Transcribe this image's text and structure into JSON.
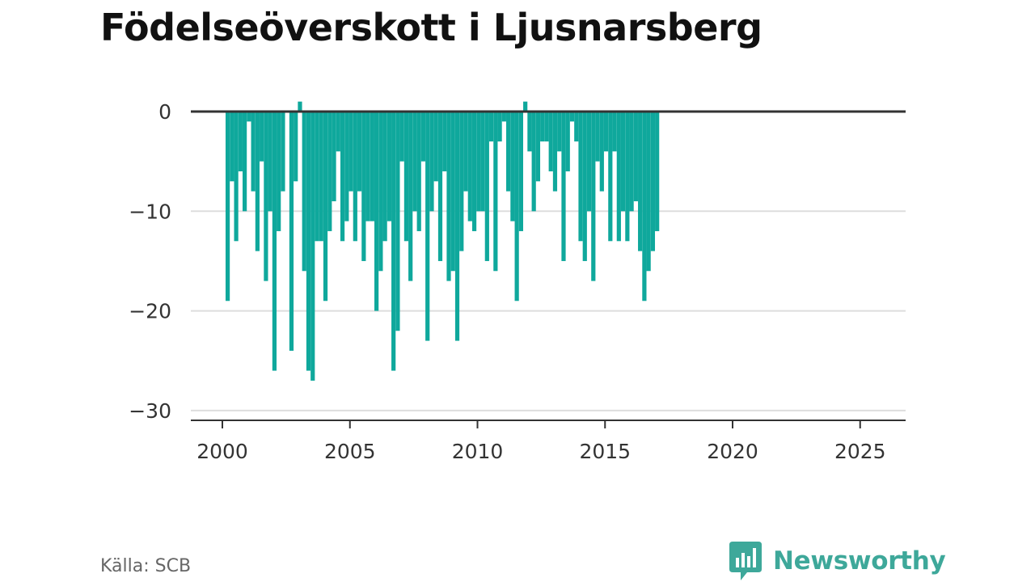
{
  "title": "Födelseöverskott i Ljusnarsberg",
  "source": "Källa: SCB",
  "brand": {
    "name": "Newsworthy",
    "icon": "newsworthy-logo-icon",
    "color": "#3ea89a"
  },
  "colors": {
    "bar": "#0fa89c",
    "zero_line": "#333333",
    "grid": "#dddddd",
    "axis": "#333333"
  },
  "chart_data": {
    "type": "bar",
    "title": "Födelseöverskott i Ljusnarsberg",
    "xlabel": "",
    "ylabel": "",
    "frequency": "monthly (every other month)",
    "x_start": "2000-03",
    "x_step_months": 2,
    "xlim": [
      "2000",
      "2026"
    ],
    "ylim": [
      -30,
      0
    ],
    "yticks": [
      0,
      -10,
      -20,
      -30
    ],
    "ytick_labels": [
      "0",
      "−10",
      "−20",
      "−30"
    ],
    "xticks": [
      2000,
      2005,
      2010,
      2015,
      2020,
      2025
    ],
    "xtick_labels": [
      "2000",
      "2005",
      "2010",
      "2015",
      "2020",
      "2025"
    ],
    "grid": true,
    "values": [
      -19,
      -7,
      -13,
      -6,
      -10,
      -1,
      -8,
      -14,
      -5,
      -17,
      -10,
      -26,
      -12,
      -8,
      0,
      -24,
      -7,
      1,
      -16,
      -26,
      -27,
      -13,
      -13,
      -19,
      -12,
      -9,
      -4,
      -13,
      -11,
      -8,
      -13,
      -8,
      -15,
      -11,
      -11,
      -20,
      -16,
      -13,
      -11,
      -26,
      -22,
      -5,
      -13,
      -17,
      -10,
      -12,
      -5,
      -23,
      -10,
      -7,
      -15,
      -6,
      -17,
      -16,
      -23,
      -14,
      -8,
      -11,
      -12,
      -10,
      -10,
      -15,
      -3,
      -16,
      -3,
      -1,
      -8,
      -11,
      -19,
      -12,
      1,
      -4,
      -10,
      -7,
      -3,
      -3,
      -6,
      -8,
      -4,
      -15,
      -6,
      -1,
      -3,
      -13,
      -15,
      -10,
      -17,
      -5,
      -8,
      -4,
      -13,
      -4,
      -13,
      -10,
      -13,
      -10,
      -9,
      -14,
      -19,
      -16,
      -14,
      -12
    ]
  }
}
